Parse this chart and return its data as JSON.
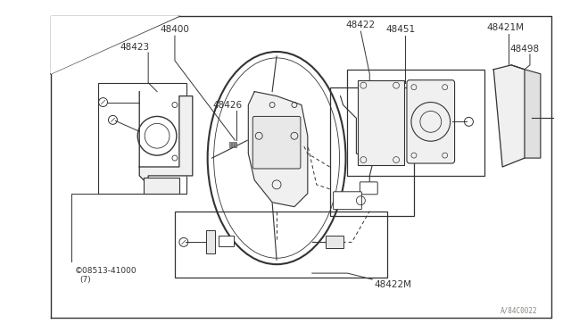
{
  "bg_color": "#ffffff",
  "line_color": "#333333",
  "label_color": "#333333",
  "watermark": "A/84C0022",
  "fig_width": 6.4,
  "fig_height": 3.72,
  "dpi": 100
}
